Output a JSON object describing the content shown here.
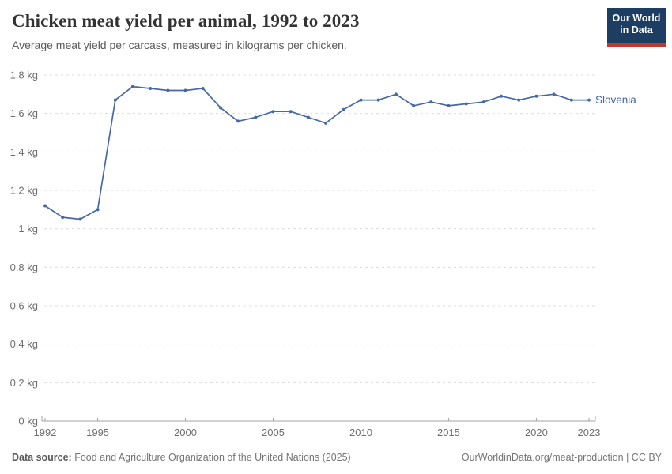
{
  "header": {
    "title": "Chicken meat yield per animal, 1992 to 2023",
    "subtitle": "Average meat yield per carcass, measured in kilograms per chicken.",
    "logo": {
      "line1": "Our World",
      "line2": "in Data"
    }
  },
  "chart_data": {
    "type": "line",
    "title": "Chicken meat yield per animal, 1992 to 2023",
    "subtitle": "Average meat yield per carcass, measured in kilograms per chicken.",
    "unit": "kg",
    "x": [
      1992,
      1993,
      1994,
      1995,
      1996,
      1997,
      1998,
      1999,
      2000,
      2001,
      2002,
      2003,
      2004,
      2005,
      2006,
      2007,
      2008,
      2009,
      2010,
      2011,
      2012,
      2013,
      2014,
      2015,
      2016,
      2017,
      2018,
      2019,
      2020,
      2021,
      2022,
      2023
    ],
    "series": [
      {
        "name": "Slovenia",
        "color": "#4669a5",
        "values": [
          1.12,
          1.06,
          1.05,
          1.1,
          1.67,
          1.74,
          1.73,
          1.72,
          1.72,
          1.73,
          1.63,
          1.56,
          1.58,
          1.61,
          1.61,
          1.58,
          1.55,
          1.62,
          1.67,
          1.67,
          1.7,
          1.64,
          1.66,
          1.64,
          1.65,
          1.66,
          1.69,
          1.67,
          1.69,
          1.7,
          1.67,
          1.67
        ]
      }
    ],
    "xlim": [
      1992,
      2023
    ],
    "ylim": [
      0,
      1.8
    ],
    "y_ticks": [
      {
        "v": 0,
        "label": "0 kg"
      },
      {
        "v": 0.2,
        "label": "0.2 kg"
      },
      {
        "v": 0.4,
        "label": "0.4 kg"
      },
      {
        "v": 0.6,
        "label": "0.6 kg"
      },
      {
        "v": 0.8,
        "label": "0.8 kg"
      },
      {
        "v": 1,
        "label": "1 kg"
      },
      {
        "v": 1.2,
        "label": "1.2 kg"
      },
      {
        "v": 1.4,
        "label": "1.4 kg"
      },
      {
        "v": 1.6,
        "label": "1.6 kg"
      },
      {
        "v": 1.8,
        "label": "1.8 kg"
      }
    ],
    "x_ticks": [
      1992,
      1995,
      2000,
      2005,
      2010,
      2015,
      2020,
      2023
    ],
    "grid": "horizontal-dashed",
    "legend_position": "end-of-line-label"
  },
  "footer": {
    "source_label": "Data source:",
    "source_text": " Food and Agriculture Organization of the United Nations (2025)",
    "link": "OurWorldinData.org/meat-production | CC BY"
  },
  "colors": {
    "line": "#4669a5",
    "grid": "#dcdcdc",
    "axis": "#a3a3a3",
    "tick_text": "#6e6e6e",
    "title_text": "#333333",
    "subtitle_text": "#5b5b5b",
    "logo_bg": "#1d3d63",
    "logo_red": "#c0392b"
  }
}
